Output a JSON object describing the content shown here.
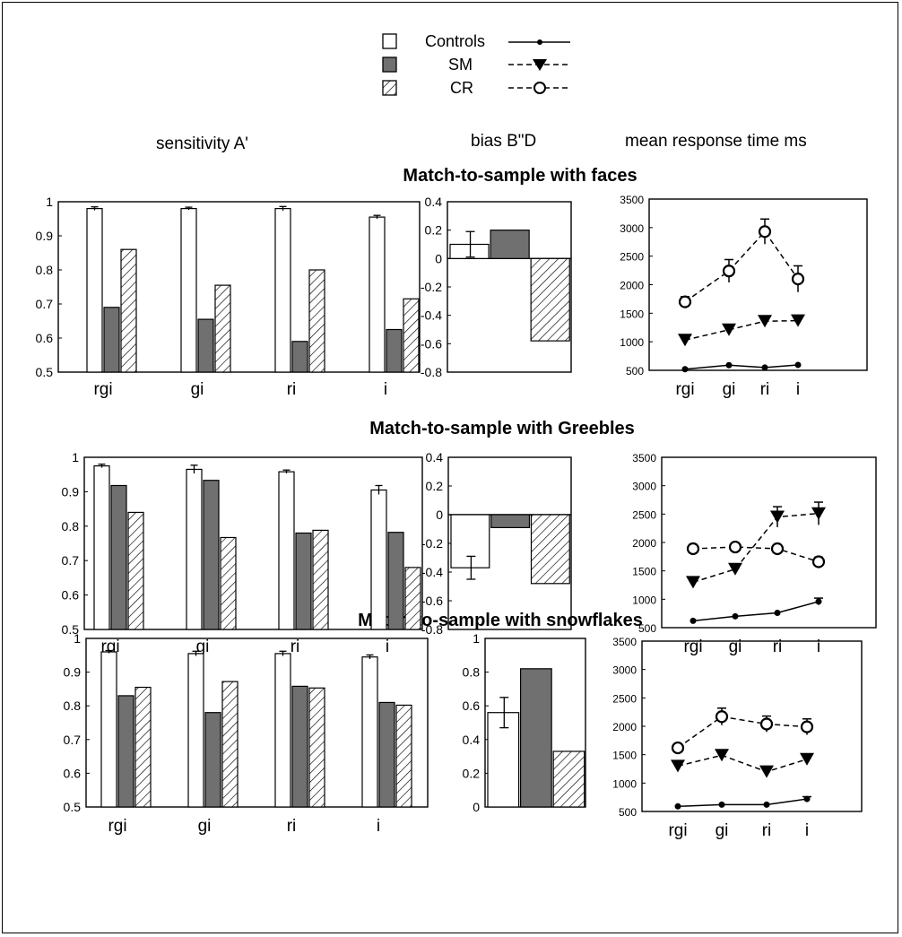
{
  "legend": {
    "items": [
      {
        "label": "Controls",
        "bar_style": "white",
        "line_style": "solid",
        "marker": "dot"
      },
      {
        "label": "SM",
        "bar_style": "gray",
        "line_style": "dashed",
        "marker": "triangle-down"
      },
      {
        "label": "CR",
        "bar_style": "hatched",
        "line_style": "dashed",
        "marker": "circle-open"
      }
    ]
  },
  "column_headings": {
    "sensitivity": "sensitivity A'",
    "bias": "bias B\"D",
    "rt": "mean response time ms"
  },
  "colors": {
    "controls_bar": "#ffffff",
    "sm_bar": "#707070",
    "cr_hatch": "#000000",
    "axis": "#000000"
  },
  "chart_data": [
    {
      "type": "bar",
      "panel": "faces",
      "title": "Match-to-sample with faces",
      "measure": "sensitivity A'",
      "ylim": [
        0.5,
        1
      ],
      "yticks": [
        "0.5",
        "0.6",
        "0.7",
        "0.8",
        "0.9",
        "1"
      ],
      "categories": [
        "rgi",
        "gi",
        "ri",
        "i"
      ],
      "series": [
        {
          "name": "Controls",
          "values": [
            0.98,
            0.98,
            0.98,
            0.955
          ],
          "errors": [
            0.005,
            0.004,
            0.006,
            0.005
          ]
        },
        {
          "name": "SM",
          "values": [
            0.69,
            0.655,
            0.59,
            0.625
          ]
        },
        {
          "name": "CR",
          "values": [
            0.86,
            0.755,
            0.8,
            0.715
          ]
        }
      ]
    },
    {
      "type": "bar",
      "panel": "faces",
      "measure": "bias B\"D",
      "ylim": [
        -0.8,
        0.4
      ],
      "yticks": [
        "-0.8",
        "-0.6",
        "-0.4",
        "-0.2",
        "0",
        "0.2",
        "0.4"
      ],
      "series": [
        {
          "name": "Controls",
          "values": [
            0.1
          ],
          "errors": [
            0.09
          ]
        },
        {
          "name": "SM",
          "values": [
            0.2
          ]
        },
        {
          "name": "CR",
          "values": [
            -0.58
          ]
        }
      ]
    },
    {
      "type": "line",
      "panel": "faces",
      "measure": "mean response time ms",
      "ylim": [
        500,
        3500
      ],
      "yticks": [
        "500",
        "1000",
        "1500",
        "2000",
        "2500",
        "3000",
        "3500"
      ],
      "categories": [
        "rgi",
        "gi",
        "ri",
        "i"
      ],
      "series": [
        {
          "name": "Controls",
          "values": [
            520,
            590,
            550,
            595
          ],
          "errors": [
            0,
            0,
            0,
            0
          ]
        },
        {
          "name": "SM",
          "values": [
            1030,
            1210,
            1360,
            1370
          ],
          "errors": [
            0,
            0,
            0,
            0
          ]
        },
        {
          "name": "CR",
          "values": [
            1700,
            2240,
            2930,
            2100
          ],
          "errors": [
            90,
            200,
            220,
            230
          ]
        }
      ]
    },
    {
      "type": "bar",
      "panel": "greebles",
      "title": "Match-to-sample with Greebles",
      "measure": "sensitivity A'",
      "ylim": [
        0.5,
        1
      ],
      "yticks": [
        "0.5",
        "0.6",
        "0.7",
        "0.8",
        "0.9",
        "1"
      ],
      "categories": [
        "rgi",
        "gi",
        "ri",
        "i"
      ],
      "series": [
        {
          "name": "Controls",
          "values": [
            0.975,
            0.965,
            0.958,
            0.905
          ],
          "errors": [
            0.005,
            0.012,
            0.005,
            0.013
          ]
        },
        {
          "name": "SM",
          "values": [
            0.918,
            0.933,
            0.78,
            0.782
          ]
        },
        {
          "name": "CR",
          "values": [
            0.84,
            0.767,
            0.788,
            0.68
          ]
        }
      ]
    },
    {
      "type": "bar",
      "panel": "greebles",
      "measure": "bias B\"D",
      "ylim": [
        -0.8,
        0.4
      ],
      "yticks": [
        "-0.8",
        "-0.6",
        "-0.4",
        "-0.2",
        "0",
        "0.2",
        "0.4"
      ],
      "series": [
        {
          "name": "Controls",
          "values": [
            -0.37
          ],
          "errors": [
            0.08
          ]
        },
        {
          "name": "SM",
          "values": [
            -0.09
          ]
        },
        {
          "name": "CR",
          "values": [
            -0.48
          ]
        }
      ]
    },
    {
      "type": "line",
      "panel": "greebles",
      "measure": "mean response time ms",
      "ylim": [
        500,
        3500
      ],
      "yticks": [
        "500",
        "1000",
        "1500",
        "2000",
        "2500",
        "3000",
        "3500"
      ],
      "categories": [
        "rgi",
        "gi",
        "ri",
        "i"
      ],
      "series": [
        {
          "name": "Controls",
          "values": [
            620,
            700,
            760,
            960
          ],
          "errors": [
            0,
            0,
            0,
            60
          ]
        },
        {
          "name": "SM",
          "values": [
            1300,
            1530,
            2450,
            2510
          ],
          "errors": [
            60,
            80,
            180,
            200
          ]
        },
        {
          "name": "CR",
          "values": [
            1890,
            1920,
            1890,
            1660
          ],
          "errors": [
            70,
            60,
            60,
            80
          ]
        }
      ]
    },
    {
      "type": "bar",
      "panel": "snowflakes",
      "title": "Match-to-sample with snowflakes",
      "measure": "sensitivity A'",
      "ylim": [
        0.5,
        1
      ],
      "yticks": [
        "0.5",
        "0.6",
        "0.7",
        "0.8",
        "0.9",
        "1"
      ],
      "categories": [
        "rgi",
        "gi",
        "ri",
        "i"
      ],
      "series": [
        {
          "name": "Controls",
          "values": [
            0.96,
            0.955,
            0.955,
            0.945
          ],
          "errors": [
            0.004,
            0.007,
            0.007,
            0.006
          ]
        },
        {
          "name": "SM",
          "values": [
            0.83,
            0.78,
            0.858,
            0.81
          ]
        },
        {
          "name": "CR",
          "values": [
            0.855,
            0.872,
            0.853,
            0.802
          ]
        }
      ]
    },
    {
      "type": "bar",
      "panel": "snowflakes",
      "measure": "bias B\"D",
      "ylim": [
        0,
        1
      ],
      "yticks": [
        "0",
        "0.2",
        "0.4",
        "0.6",
        "0.8",
        "1"
      ],
      "series": [
        {
          "name": "Controls",
          "values": [
            0.56
          ],
          "errors": [
            0.09
          ]
        },
        {
          "name": "SM",
          "values": [
            0.82
          ]
        },
        {
          "name": "CR",
          "values": [
            0.33
          ]
        }
      ]
    },
    {
      "type": "line",
      "panel": "snowflakes",
      "measure": "mean response time ms",
      "ylim": [
        500,
        3500
      ],
      "yticks": [
        "500",
        "1000",
        "1500",
        "2000",
        "2500",
        "3000",
        "3500"
      ],
      "categories": [
        "rgi",
        "gi",
        "ri",
        "i"
      ],
      "series": [
        {
          "name": "Controls",
          "values": [
            590,
            620,
            620,
            720
          ],
          "errors": [
            0,
            0,
            0,
            40
          ]
        },
        {
          "name": "SM",
          "values": [
            1300,
            1490,
            1200,
            1420
          ],
          "errors": [
            50,
            50,
            40,
            50
          ]
        },
        {
          "name": "CR",
          "values": [
            1620,
            2170,
            2040,
            1990
          ],
          "errors": [
            60,
            150,
            140,
            140
          ]
        }
      ]
    }
  ]
}
